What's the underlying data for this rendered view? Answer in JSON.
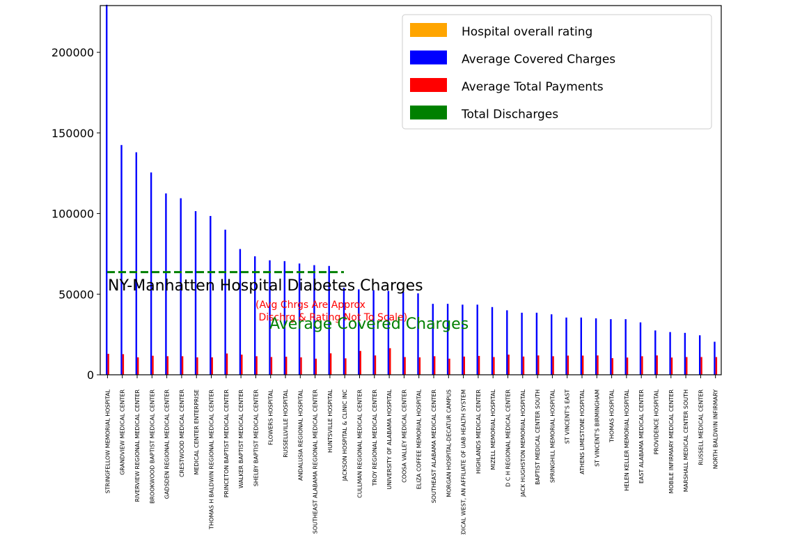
{
  "chart_data": {
    "type": "bar",
    "ylim": [
      0,
      229000
    ],
    "yticks": [
      0,
      50000,
      100000,
      150000,
      200000
    ],
    "grid": false,
    "legend_position": "top-right",
    "categories": [
      "STRINGFELLOW MEMORIAL HOSPITAL",
      "GRANDVIEW MEDICAL CENTER",
      "RIVERVIEW REGIONAL MEDICAL CENTER",
      "BROOKWOOD BAPTIST MEDICAL CENTER",
      "GADSDEN REGIONAL MEDICAL CENTER",
      "CRESTWOOD MEDICAL CENTER",
      "MEDICAL CENTER ENTERPRISE",
      "THOMAS H BALDWIN REGIONAL MEDICAL CENTER",
      "PRINCETON BAPTIST MEDICAL CENTER",
      "WALKER BAPTIST MEDICAL CENTER",
      "SHELBY BAPTIST MEDICAL CENTER",
      "FLOWERS HOSPITAL",
      "RUSSELLVILLE HOSPITAL",
      "ANDALUSIA REGIONAL HOSPITAL",
      "SOUTHEAST ALABAMA REGIONAL MEDICAL CENTER",
      "HUNTSVILLE HOSPITAL",
      "JACKSON HOSPITAL & CLINIC INC",
      "CULLMAN REGIONAL MEDICAL CENTER",
      "TROY REGIONAL MEDICAL CENTER",
      "UNIVERSITY OF ALABAMA HOSPITAL",
      "COOSA VALLEY MEDICAL CENTER",
      "ELIZA COFFEE MEMORIAL HOSPITAL",
      "SOUTHEAST ALABAMA MEDICAL CENTER",
      "MORGAN HOSPITAL-DECATUR CAMPUS",
      "MEDICAL WEST, AN AFFILIATE OF UAB HEALTH SYSTEM",
      "HIGHLANDS MEDICAL CENTER",
      "MIZELL MEMORIAL HOSPITAL",
      "D C H REGIONAL MEDICAL CENTER",
      "JACK HUGHSTON MEMORIAL HOSPITAL",
      "BAPTIST MEDICAL CENTER SOUTH",
      "SPRINGHILL MEMORIAL HOSPITAL",
      "ST VINCENT'S EAST",
      "ATHENS LIMESTONE HOSPITAL",
      "ST VINCENT'S BIRMINGHAM",
      "THOMAS HOSPITAL",
      "HELEN KELLER MEMORIAL HOSPITAL",
      "EAST ALABAMA MEDICAL CENTER",
      "PROVIDENCE HOSPITAL",
      "MOBILE INFIRMARY MEDICAL CENTER",
      "MARSHALL MEDICAL CENTER SOUTH",
      "RUSSELL MEDICAL CENTER",
      "NORTH BALDWIN INFIRMARY"
    ],
    "series": [
      {
        "name": "Hospital overall rating",
        "color": "#ffa500",
        "values": [
          3,
          2,
          2,
          3,
          2,
          3,
          3,
          2,
          2,
          2,
          3,
          3,
          3,
          3,
          3,
          3,
          2,
          3,
          3,
          4,
          3,
          3,
          3,
          3,
          2,
          3,
          3,
          3,
          3,
          3,
          3,
          3,
          3,
          3,
          3,
          3,
          3,
          3,
          3,
          3,
          3,
          3
        ]
      },
      {
        "name": "Average Covered Charges",
        "color": "#0000ff",
        "values": [
          229500,
          142500,
          138000,
          125500,
          112500,
          109500,
          101500,
          98500,
          90000,
          78000,
          73500,
          71000,
          70500,
          69000,
          68000,
          67500,
          54000,
          53000,
          52500,
          52000,
          51500,
          50500,
          44000,
          44000,
          43500,
          43500,
          42000,
          40000,
          38500,
          38500,
          37500,
          35500,
          35500,
          35000,
          34500,
          34500,
          32500,
          27500,
          26500,
          26000,
          24500,
          20500
        ]
      },
      {
        "name": "Average Total Payments",
        "color": "#ff0000",
        "values": [
          13000,
          12800,
          10800,
          11800,
          11500,
          11500,
          10800,
          10800,
          13200,
          12500,
          11500,
          11000,
          11200,
          10800,
          10000,
          13300,
          10200,
          14800,
          12000,
          16500,
          11000,
          10800,
          11500,
          10000,
          11300,
          11700,
          11000,
          12500,
          11300,
          12000,
          11500,
          11900,
          11900,
          12000,
          10300,
          10700,
          11500,
          12000,
          10700,
          11000,
          11000,
          11000
        ]
      },
      {
        "name": "Total Discharges",
        "color": "#008000",
        "values": [
          40,
          60,
          35,
          70,
          45,
          40,
          35,
          25,
          45,
          30,
          35,
          40,
          20,
          25,
          55,
          120,
          60,
          35,
          25,
          90,
          30,
          50,
          45,
          30,
          25,
          20,
          15,
          65,
          40,
          45,
          50,
          30,
          20,
          45,
          40,
          30,
          60,
          50,
          55,
          30,
          15,
          25
        ]
      }
    ],
    "reference_line": {
      "value": 63700,
      "color": "#008000",
      "style": "dashed"
    },
    "annotations": {
      "main": "NY-Manhatten Hospital Diabetes Charges",
      "note_line1": "(Avg Chrgs Are Approx",
      "note_line2": " Dischrg & Rating Not To Scale)",
      "avg_label": "Average Covered Charges"
    }
  }
}
